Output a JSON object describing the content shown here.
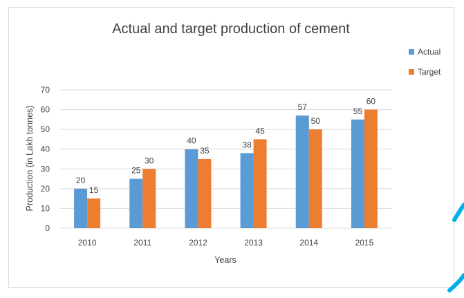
{
  "chart_data": {
    "type": "bar",
    "title": "Actual and target production  of cement",
    "xlabel": "Years",
    "ylabel": "Production (in Lakh tonnes)",
    "categories": [
      "2010",
      "2011",
      "2012",
      "2013",
      "2014",
      "2015"
    ],
    "series": [
      {
        "name": "Actual",
        "color": "#5b9bd5",
        "values": [
          20,
          25,
          40,
          38,
          57,
          55
        ]
      },
      {
        "name": "Target",
        "color": "#ed7d31",
        "values": [
          15,
          30,
          35,
          45,
          50,
          60
        ]
      }
    ],
    "ylim": [
      0,
      70
    ],
    "yticks": [
      0,
      10,
      20,
      30,
      40,
      50,
      60,
      70
    ],
    "grid": true,
    "legend": "right",
    "data_labels": true
  },
  "colors": {
    "grid": "#d9d9d9",
    "text": "#404040",
    "watermark": "#00aeef"
  }
}
